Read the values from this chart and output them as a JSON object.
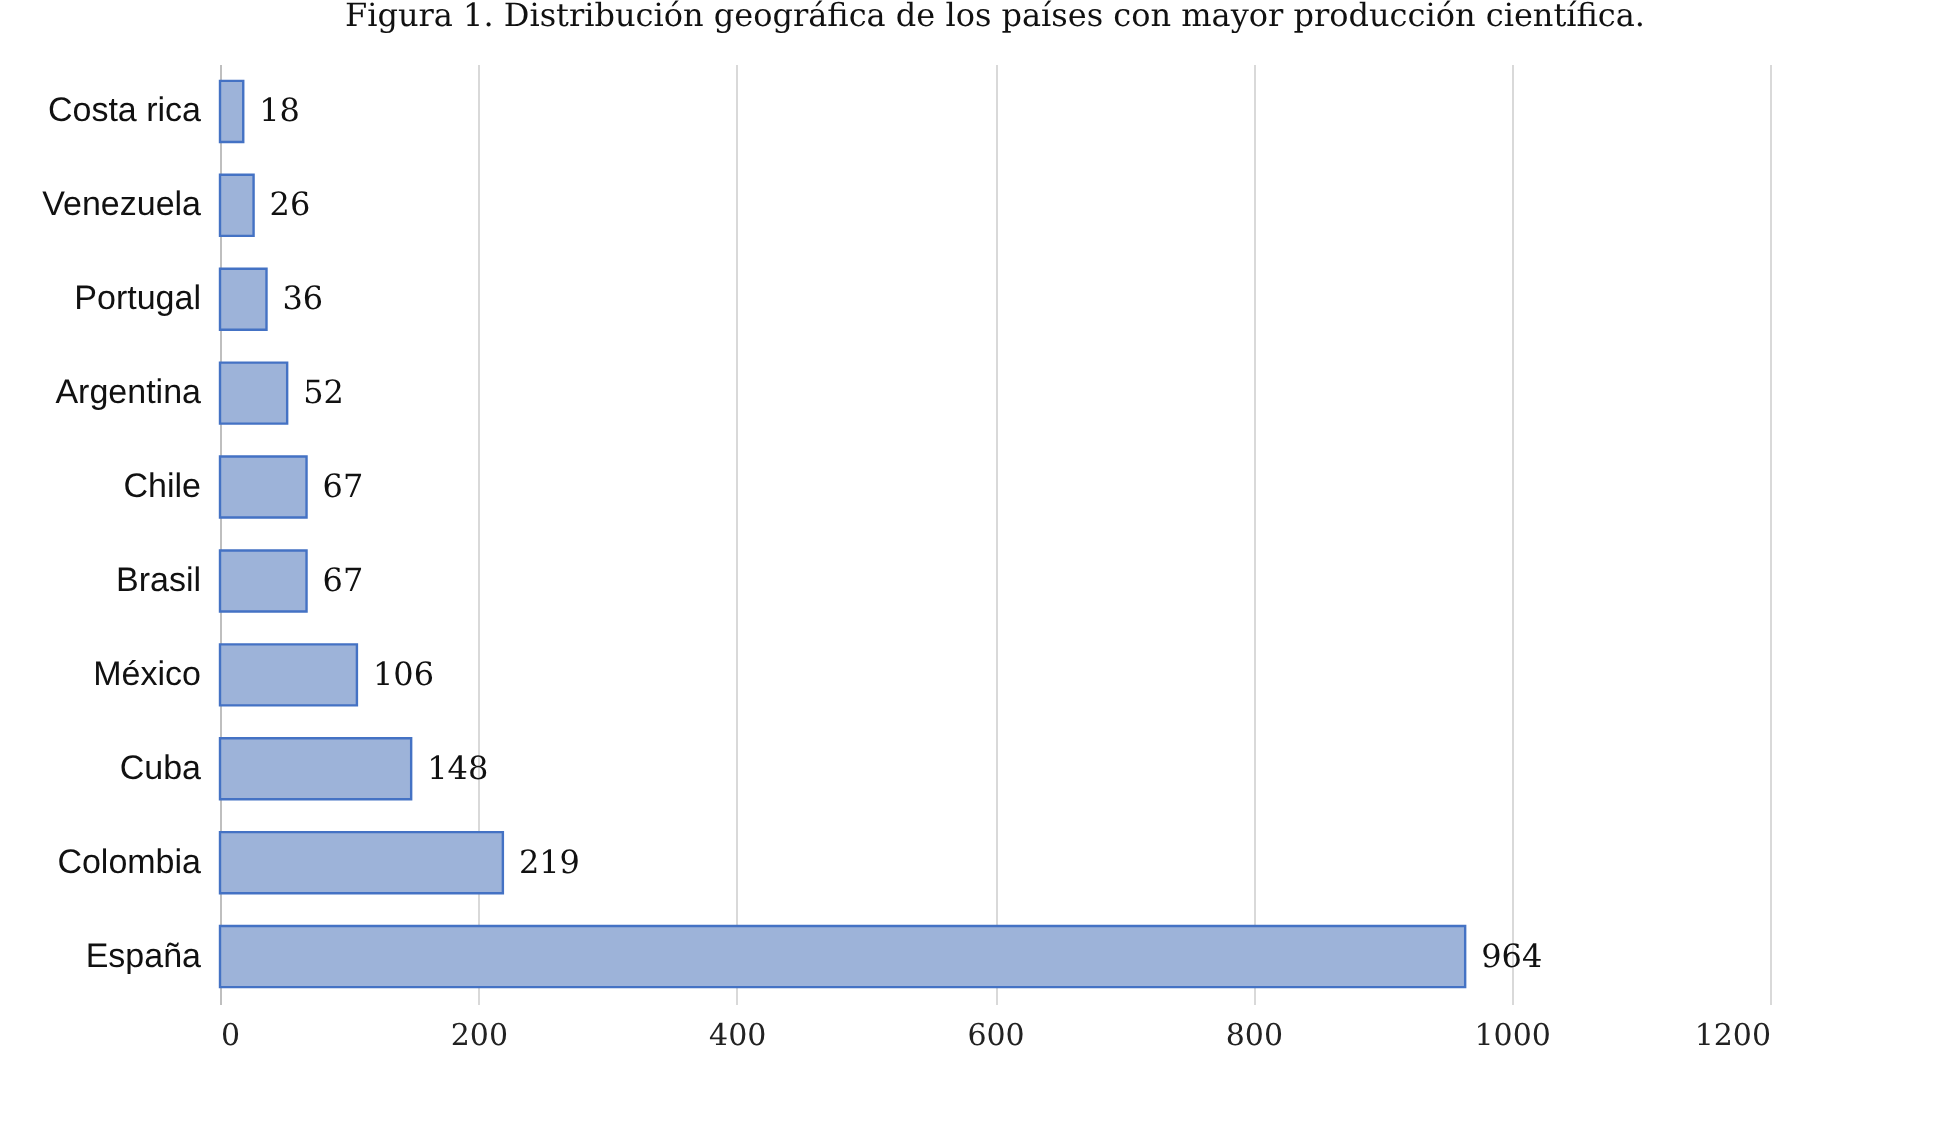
{
  "chart_data": {
    "type": "bar",
    "orientation": "horizontal",
    "title": "Figura 1. Distribución geográfica de los países con mayor producción científica.",
    "categories": [
      "Costa rica",
      "Venezuela",
      "Portugal",
      "Argentina",
      "Chile",
      "Brasil",
      "México",
      "Cuba",
      "Colombia",
      "España"
    ],
    "values": [
      18,
      26,
      36,
      52,
      67,
      67,
      106,
      148,
      219,
      964
    ],
    "color": "#9db3d9",
    "xlim": [
      0,
      1200
    ],
    "xticks": [
      0,
      200,
      400,
      600,
      800,
      1000,
      1200
    ],
    "grid": "x",
    "data_labels": true
  }
}
